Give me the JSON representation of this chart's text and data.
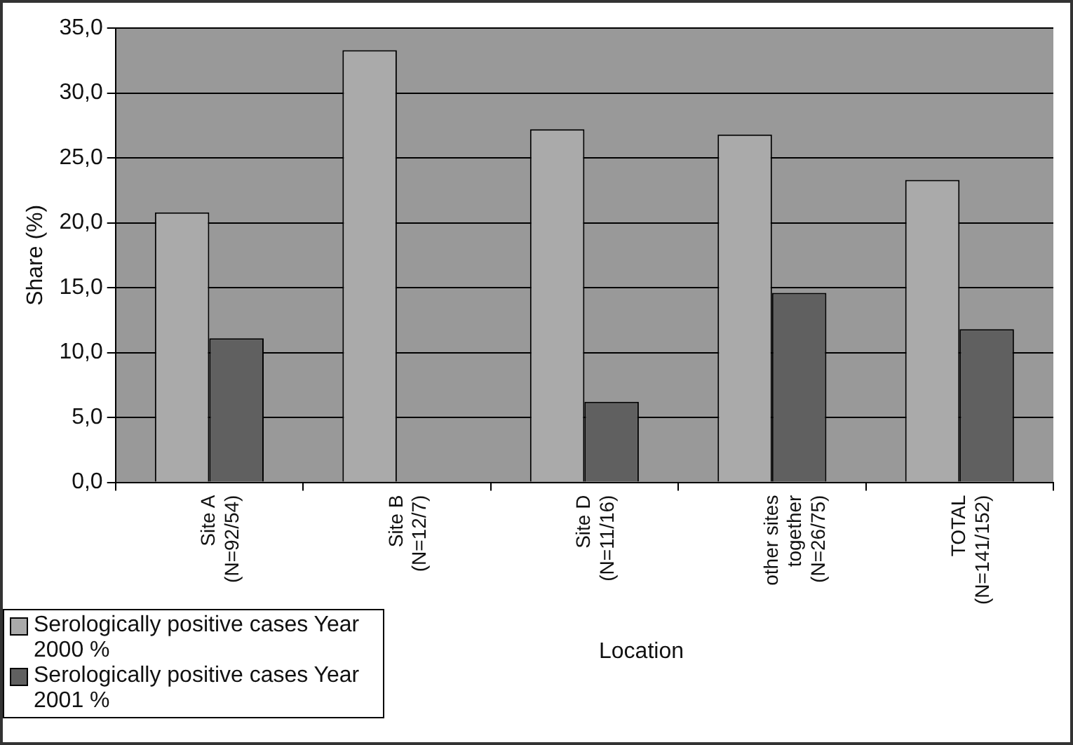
{
  "chart_data": {
    "type": "bar",
    "ylabel": "Share (%)",
    "xlabel": "Location",
    "categories": [
      "Site A\n(N=92/54)",
      "Site B\n(N=12/7)",
      "Site D\n(N=11/16)",
      "other sites\ntogether\n(N=26/75)",
      "TOTAL\n(N=141/152)"
    ],
    "series": [
      {
        "name": "Serologically positive cases Year 2000 %",
        "color": "#aaaaaa",
        "values": [
          20.8,
          33.3,
          27.2,
          26.8,
          23.3
        ]
      },
      {
        "name": "Serologically positive cases Year 2001 %",
        "color": "#606060",
        "values": [
          11.1,
          0,
          6.2,
          14.6,
          11.8
        ]
      }
    ],
    "ylim": [
      0,
      35
    ],
    "yticks": [
      {
        "value": 0,
        "label": "0,0"
      },
      {
        "value": 5,
        "label": "5,0"
      },
      {
        "value": 10,
        "label": "10,0"
      },
      {
        "value": 15,
        "label": "15,0"
      },
      {
        "value": 20,
        "label": "20,0"
      },
      {
        "value": 25,
        "label": "25,0"
      },
      {
        "value": 30,
        "label": "30,0"
      },
      {
        "value": 35,
        "label": "35,0"
      }
    ],
    "grid": "y",
    "legend": "bottom left"
  }
}
